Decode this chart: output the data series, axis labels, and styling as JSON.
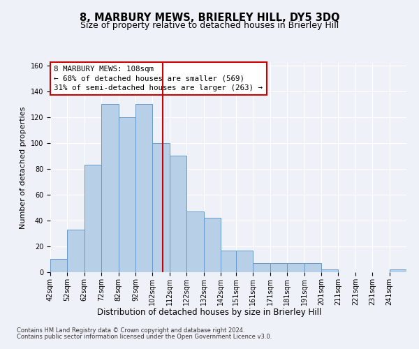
{
  "title": "8, MARBURY MEWS, BRIERLEY HILL, DY5 3DQ",
  "subtitle": "Size of property relative to detached houses in Brierley Hill",
  "xlabel": "Distribution of detached houses by size in Brierley Hill",
  "ylabel": "Number of detached properties",
  "bar_color": "#b8cfe8",
  "bar_edge_color": "#6699cc",
  "vline_color": "#cc0000",
  "vline_x": 108,
  "annotation_text": "8 MARBURY MEWS: 108sqm\n← 68% of detached houses are smaller (569)\n31% of semi-detached houses are larger (263) →",
  "annotation_box_color": "#ffffff",
  "annotation_box_edge_color": "#cc0000",
  "footer1": "Contains HM Land Registry data © Crown copyright and database right 2024.",
  "footer2": "Contains public sector information licensed under the Open Government Licence v3.0.",
  "bins": [
    42,
    52,
    62,
    72,
    82,
    92,
    102,
    112,
    122,
    132,
    142,
    151,
    161,
    171,
    181,
    191,
    201,
    211,
    221,
    231,
    241,
    251
  ],
  "counts": [
    10,
    33,
    83,
    130,
    120,
    130,
    100,
    90,
    47,
    42,
    17,
    17,
    7,
    7,
    7,
    7,
    2,
    0,
    0,
    0,
    2
  ],
  "ylim": [
    0,
    162
  ],
  "yticks": [
    0,
    20,
    40,
    60,
    80,
    100,
    120,
    140,
    160
  ],
  "background_color": "#eef2f8",
  "grid_color": "#ffffff",
  "title_fontsize": 10.5,
  "subtitle_fontsize": 9,
  "tick_fontsize": 7,
  "ylabel_fontsize": 8,
  "xlabel_fontsize": 8.5
}
